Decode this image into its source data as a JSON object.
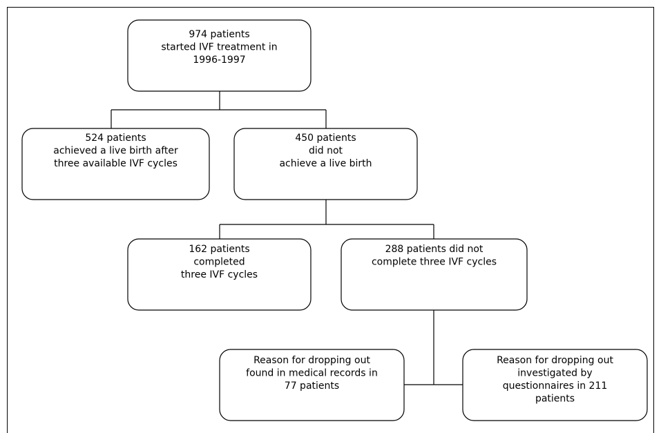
{
  "nodes": [
    {
      "lines": [
        "974 patients",
        "started IVF treatment in",
        "1996-1997"
      ]
    },
    {
      "lines": [
        "524 patients",
        "achieved a live birth after",
        "three available IVF cycles"
      ]
    },
    {
      "lines": [
        "450 patients",
        "did not",
        "achieve a live birth"
      ]
    },
    {
      "lines": [
        "162 patients",
        "completed",
        "three IVF cycles"
      ]
    },
    {
      "lines": [
        "288 patients did not",
        "complete three IVF cycles"
      ]
    },
    {
      "lines": [
        "Reason for dropping out",
        "found in medical records in",
        "77 patients"
      ]
    },
    {
      "lines": [
        "Reason for dropping out",
        "investigated by",
        "questionnaires in 211",
        "patients"
      ]
    }
  ]
}
